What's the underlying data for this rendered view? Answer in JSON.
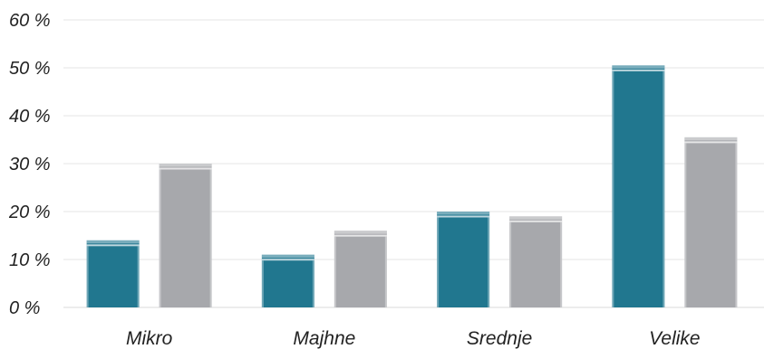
{
  "chart_data": {
    "type": "bar",
    "title": "",
    "xlabel": "",
    "ylabel": "",
    "categories": [
      "Mikro",
      "Majhne",
      "Srednje",
      "Velike"
    ],
    "series": [
      {
        "values": [
          14,
          11,
          20,
          50.5
        ],
        "color": "#21778f"
      },
      {
        "values": [
          30,
          16,
          19,
          35.5
        ],
        "color": "#a7a8ac"
      }
    ],
    "ylim": [
      0,
      60
    ],
    "yticks": [
      0,
      10,
      20,
      30,
      40,
      50,
      60
    ],
    "ytick_labels": [
      "0 %",
      "10 %",
      "20 %",
      "30 %",
      "40 %",
      "50 %",
      "60 %"
    ],
    "grid": true,
    "legend": "none"
  }
}
